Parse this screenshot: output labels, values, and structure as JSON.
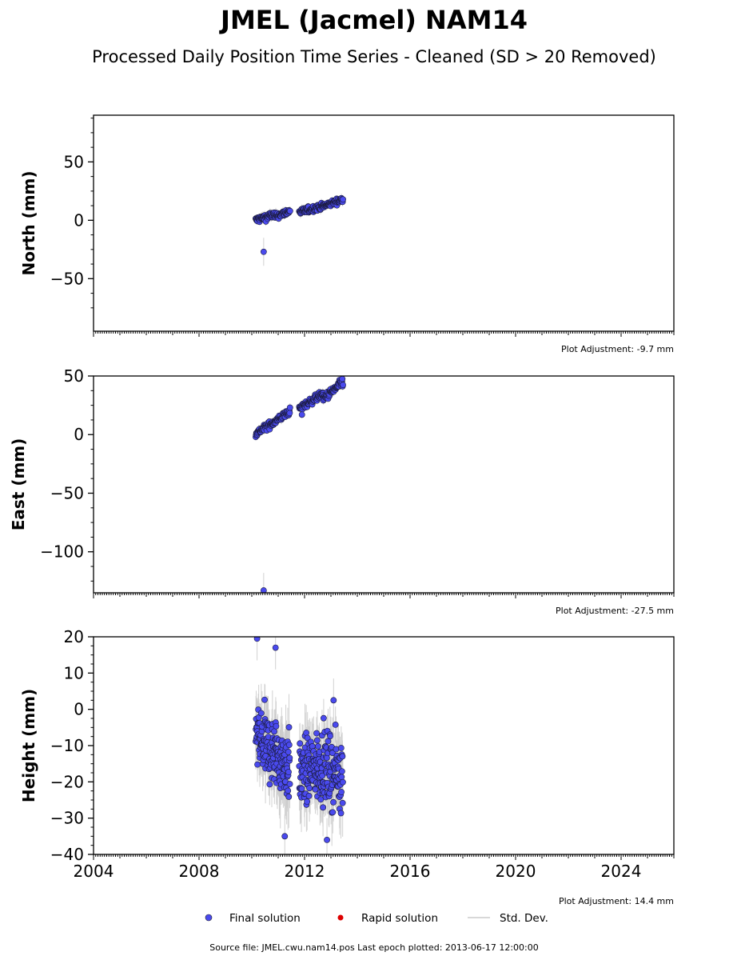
{
  "title": "JMEL (Jacmel) NAM14",
  "subtitle": "Processed Daily Position Time Series - Cleaned (SD > 20 Removed)",
  "legend": {
    "final": "Final solution",
    "rapid": "Rapid solution",
    "std": "Std. Dev."
  },
  "footer": "Source file: JMEL.cwu.nam14.pos  Last epoch plotted: 2013-06-17 12:00:00",
  "colors": {
    "final": "#4a4aee",
    "rapid": "#dd0000",
    "std": "#cccccc"
  },
  "chart_data": [
    {
      "type": "scatter",
      "ylabel": "North (mm)",
      "adjustment": "Plot Adjustment: -9.7 mm",
      "xlim": [
        2004,
        2026
      ],
      "ylim": [
        -95,
        90
      ],
      "yticks": [
        -50,
        0,
        50
      ],
      "ytick_labels": [
        "−50",
        "0",
        "50"
      ],
      "xticks": [
        2004,
        2008,
        2012,
        2016,
        2020,
        2024
      ],
      "xtick_labels": [
        "2004",
        "2008",
        "2012",
        "2016",
        "2020",
        "2024"
      ],
      "show_xtick_labels": false,
      "series": [
        {
          "kind": "final",
          "segments": [
            {
              "x0": 2010.15,
              "x1": 2010.85,
              "y0": 0,
              "y1": 5,
              "noise": 2.5,
              "sd": 3,
              "step": 0.012
            },
            {
              "x0": 2010.85,
              "x1": 2011.45,
              "y0": 3,
              "y1": 8,
              "noise": 2.2,
              "sd": 3,
              "step": 0.012
            },
            {
              "x0": 2011.8,
              "x1": 2012.7,
              "y0": 7,
              "y1": 12,
              "noise": 2.2,
              "sd": 3,
              "step": 0.012
            },
            {
              "x0": 2012.7,
              "x1": 2013.46,
              "y0": 12,
              "y1": 18,
              "noise": 2.0,
              "sd": 3,
              "step": 0.012
            }
          ],
          "points": [
            {
              "x": 2010.45,
              "y": -27,
              "sd": 12
            }
          ]
        }
      ]
    },
    {
      "type": "scatter",
      "ylabel": "East (mm)",
      "adjustment": "Plot Adjustment: -27.5 mm",
      "xlim": [
        2004,
        2026
      ],
      "ylim": [
        -135,
        50
      ],
      "yticks": [
        -100,
        -50,
        0,
        50
      ],
      "ytick_labels": [
        "−100",
        "−50",
        "0",
        "50"
      ],
      "xticks": [
        2004,
        2008,
        2012,
        2016,
        2020,
        2024
      ],
      "xtick_labels": [
        "2004",
        "2008",
        "2012",
        "2016",
        "2020",
        "2024"
      ],
      "show_xtick_labels": false,
      "series": [
        {
          "kind": "final",
          "segments": [
            {
              "x0": 2010.15,
              "x1": 2010.8,
              "y0": 1,
              "y1": 10,
              "noise": 2.5,
              "sd": 3,
              "step": 0.012
            },
            {
              "x0": 2010.8,
              "x1": 2011.45,
              "y0": 10,
              "y1": 20,
              "noise": 2.5,
              "sd": 3,
              "step": 0.012
            },
            {
              "x0": 2011.8,
              "x1": 2012.7,
              "y0": 22,
              "y1": 35,
              "noise": 2.5,
              "sd": 3,
              "step": 0.012
            },
            {
              "x0": 2012.7,
              "x1": 2013.46,
              "y0": 30,
              "y1": 45,
              "noise": 3.0,
              "sd": 3,
              "step": 0.012
            }
          ],
          "points": [
            {
              "x": 2010.45,
              "y": -133,
              "sd": 15
            },
            {
              "x": 2011.9,
              "y": 17,
              "sd": 3
            }
          ]
        }
      ]
    },
    {
      "type": "scatter",
      "ylabel": "Height (mm)",
      "adjustment": "Plot Adjustment: 14.4 mm",
      "xlim": [
        2004,
        2026
      ],
      "ylim": [
        -40,
        20
      ],
      "yticks": [
        -40,
        -30,
        -20,
        -10,
        0,
        10,
        20
      ],
      "ytick_labels": [
        "−40",
        "−30",
        "−20",
        "−10",
        "0",
        "10",
        "20"
      ],
      "xticks": [
        2004,
        2008,
        2012,
        2016,
        2020,
        2024
      ],
      "xtick_labels": [
        "2004",
        "2008",
        "2012",
        "2016",
        "2020",
        "2024"
      ],
      "show_xtick_labels": true,
      "series": [
        {
          "kind": "final",
          "segments": [
            {
              "x0": 2010.15,
              "x1": 2010.85,
              "y0": -8,
              "y1": -12,
              "noise": 8,
              "sd": 7,
              "step": 0.008
            },
            {
              "x0": 2010.85,
              "x1": 2011.45,
              "y0": -12,
              "y1": -16,
              "noise": 8,
              "sd": 8,
              "step": 0.008
            },
            {
              "x0": 2011.8,
              "x1": 2012.7,
              "y0": -18,
              "y1": -15,
              "noise": 8,
              "sd": 7,
              "step": 0.008
            },
            {
              "x0": 2012.7,
              "x1": 2013.46,
              "y0": -16,
              "y1": -18,
              "noise": 8,
              "sd": 7,
              "step": 0.008
            }
          ],
          "points": [
            {
              "x": 2010.2,
              "y": 19.5,
              "sd": 6
            },
            {
              "x": 2010.9,
              "y": 17,
              "sd": 6
            },
            {
              "x": 2011.25,
              "y": -35,
              "sd": 6
            },
            {
              "x": 2012.85,
              "y": -36,
              "sd": 6
            },
            {
              "x": 2013.1,
              "y": 2.5,
              "sd": 6
            }
          ]
        }
      ]
    }
  ]
}
